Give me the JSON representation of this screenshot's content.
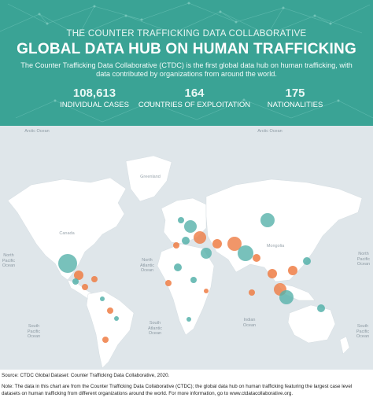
{
  "header": {
    "org": "THE COUNTER TRAFFICKING DATA COLLABORATIVE",
    "title": "GLOBAL DATA HUB ON HUMAN TRAFFICKING",
    "description": "The Counter Trafficking Data Collaborative (CTDC) is the first global data hub on human trafficking, with data contributed by organizations from around the world.",
    "stats": [
      {
        "value": "108,613",
        "label": "INDIVIDUAL CASES"
      },
      {
        "value": "164",
        "label": "COUNTRIES OF EXPLOITATION"
      },
      {
        "value": "175",
        "label": "NATIONALITIES"
      }
    ]
  },
  "map": {
    "colors": {
      "ocean": "#dfe6ea",
      "land": "#ffffff",
      "teal": "#56b2aa",
      "orange": "#ee7c44"
    },
    "labels": {
      "arctic_left": "Arctic Ocean",
      "arctic_right": "Arctic Ocean",
      "greenland": "Greenland",
      "canada": "Canada",
      "north_atlantic": "North Atlantic Ocean",
      "north_pacific_left": "North Pacific Ocean",
      "north_pacific_right": "North Pacific Ocean",
      "south_pacific_left": "South Pacific Ocean",
      "south_pacific_right": "South Pacific Ocean",
      "south_atlantic": "South Atlantic Ocean",
      "indian": "Indian Ocean",
      "mongolia": "Mongolia"
    }
  },
  "footer": {
    "source": "Source: CTDC Global Dataset: Counter Trafficking Data Collaborative, 2020.",
    "note": "Note: The data in this chart are from the Counter Trafficking Data Collaborative (CTDC); the global data hub on human trafficking featuring the largest case level datasets on human trafficking from different organizations around the world. For more information, go to www.ctdatacollaborative.org."
  }
}
